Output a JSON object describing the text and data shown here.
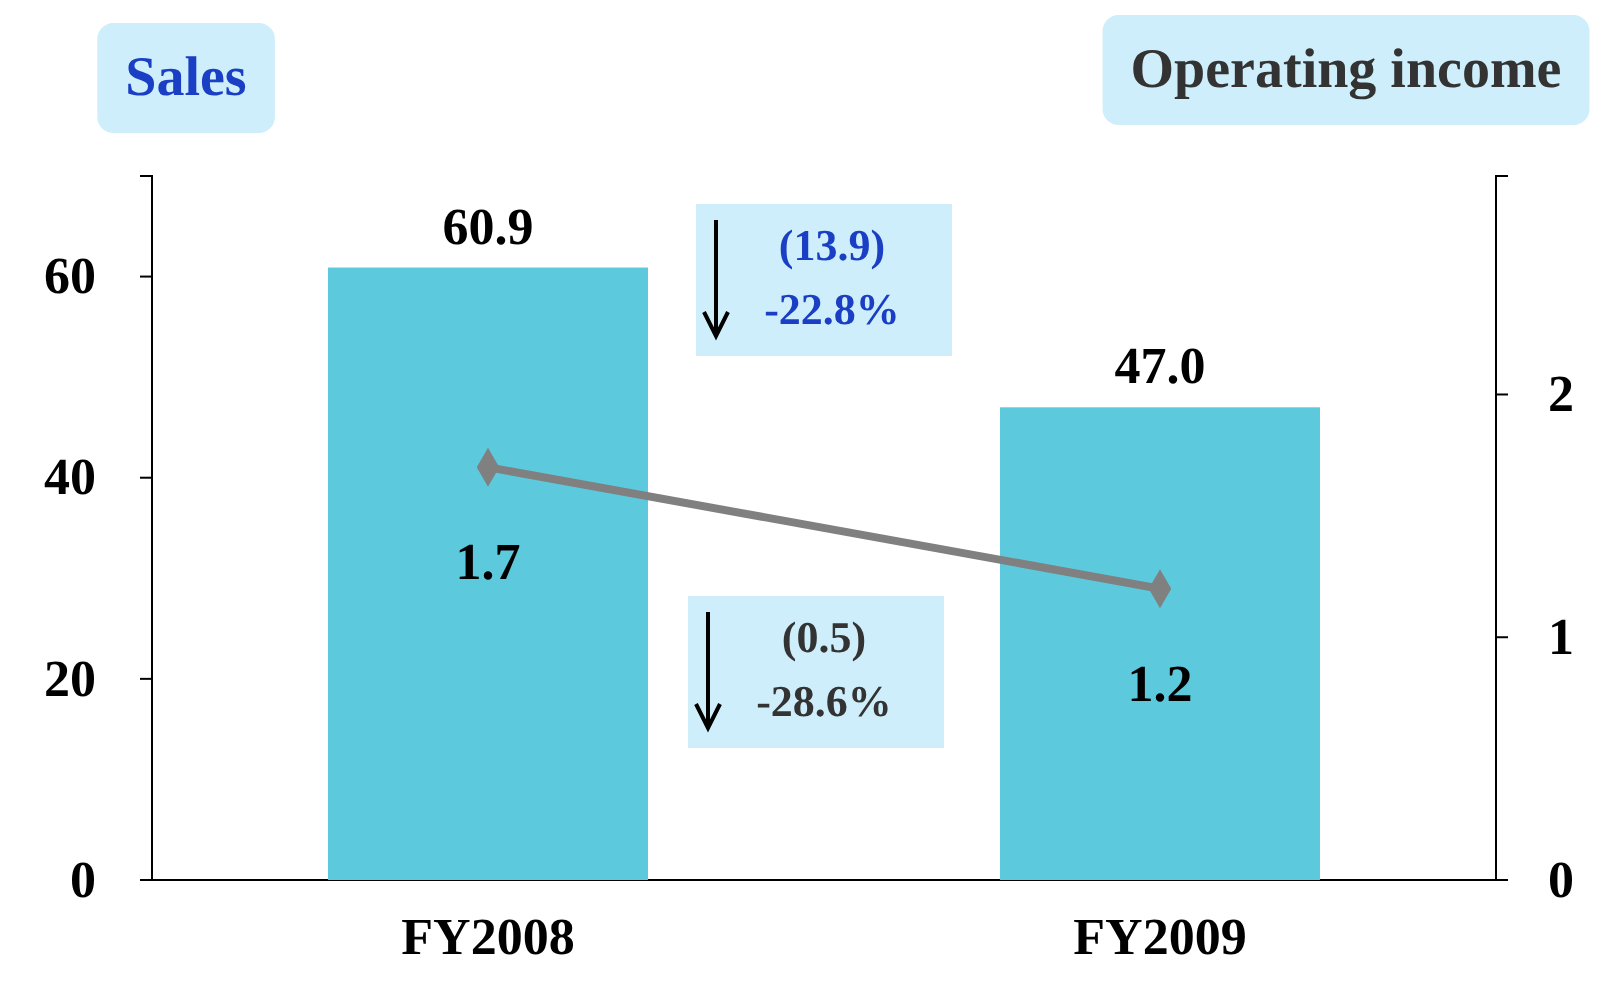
{
  "chart_data": {
    "type": "bar",
    "categories": [
      "FY2008",
      "FY2009"
    ],
    "ylabel": "Sales",
    "y2label": "Operating income",
    "series": [
      {
        "color": "#5cc9dc",
        "values": [
          60.9,
          47.0
        ],
        "value_labels": [
          "60.9",
          "47.0"
        ]
      },
      {
        "type": "line",
        "axis": "y2",
        "color": "#808080",
        "marker": "diamond",
        "values": [
          1.7,
          1.2
        ],
        "value_labels": [
          "1.7",
          "1.2"
        ]
      }
    ],
    "ylim": [
      0,
      70
    ],
    "yticks": [
      0,
      20,
      40,
      60
    ],
    "y2lim": [
      0,
      2.9
    ],
    "y2ticks": [
      0,
      1,
      2
    ],
    "annotations": [
      "(13.9)\n-22.8%",
      "(0.5)\n-28.6%"
    ],
    "grid": false
  }
}
